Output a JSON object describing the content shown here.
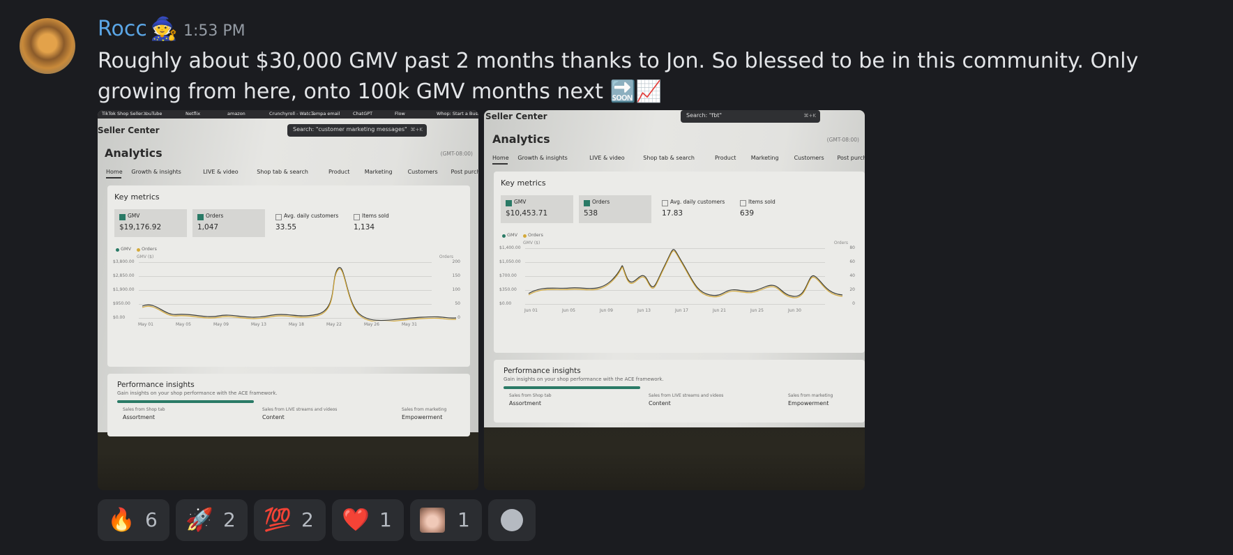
{
  "message": {
    "author": "Rocc",
    "author_badge": "🧙",
    "timestamp": "1:53 PM",
    "text": "Roughly about $30,000 GMV past 2 months thanks to Jon. So blessed to be in this community. Only growing from here, onto 100k GMV months next",
    "text_emoji": "🔜📈"
  },
  "attachments": [
    {
      "bookmarks": [
        "TikTok Shop Seller...",
        "YouTube",
        "Netflix",
        "amazon",
        "Crunchyroll - Watc...",
        "Tempa email",
        "ChatGPT",
        "Flow",
        "Whop: Start a Busi..."
      ],
      "header": "Seller Center",
      "search": "Search: \"customer marketing messages\"",
      "shortcut": "⌘+K",
      "title": "Analytics",
      "timezone": "(GMT-08:00)",
      "tabs": [
        "Home",
        "Growth & insights",
        "LIVE & video",
        "Shop tab & search",
        "Product",
        "Marketing",
        "Customers",
        "Post purchase"
      ],
      "section": "Key metrics",
      "metrics": [
        {
          "label": "GMV",
          "value": "$19,176.92"
        },
        {
          "label": "Orders",
          "value": "1,047"
        },
        {
          "label": "Avg. daily customers",
          "value": "33.55"
        },
        {
          "label": "Items sold",
          "value": "1,134"
        }
      ],
      "legend": [
        "GMV",
        "Orders"
      ],
      "y_axis_label": "GMV ($)",
      "y2_axis_label": "Orders",
      "yticks": [
        "$3,800.00",
        "$2,850.00",
        "$1,900.00",
        "$950.00",
        "$0.00"
      ],
      "y2ticks": [
        "200",
        "150",
        "100",
        "50",
        "0"
      ],
      "xticks": [
        "May 01",
        "May 05",
        "May 09",
        "May 13",
        "May 18",
        "May 22",
        "May 26",
        "May 31"
      ],
      "insights_title": "Performance insights",
      "insights_subtitle": "Gain insights on your shop performance with the ACE framework.",
      "insight_cards": [
        {
          "caption": "Sales from Shop tab",
          "name": "Assortment"
        },
        {
          "caption": "Sales from LIVE streams and videos",
          "name": "Content"
        },
        {
          "caption": "Sales from marketing",
          "name": "Empowerment"
        }
      ]
    },
    {
      "header": "Seller Center",
      "search": "Search: \"fbt\"",
      "shortcut": "⌘+K",
      "title": "Analytics",
      "timezone": "(GMT-08:00)",
      "tabs": [
        "Home",
        "Growth & insights",
        "LIVE & video",
        "Shop tab & search",
        "Product",
        "Marketing",
        "Customers",
        "Post purchase"
      ],
      "section": "Key metrics",
      "metrics": [
        {
          "label": "GMV",
          "value": "$10,453.71"
        },
        {
          "label": "Orders",
          "value": "538"
        },
        {
          "label": "Avg. daily customers",
          "value": "17.83"
        },
        {
          "label": "Items sold",
          "value": "639"
        }
      ],
      "legend": [
        "GMV",
        "Orders"
      ],
      "y_axis_label": "GMV ($)",
      "y2_axis_label": "Orders",
      "yticks": [
        "$1,400.00",
        "$1,050.00",
        "$700.00",
        "$350.00",
        "$0.00"
      ],
      "y2ticks": [
        "80",
        "60",
        "40",
        "20",
        "0"
      ],
      "xticks": [
        "Jun 01",
        "Jun 05",
        "Jun 09",
        "Jun 13",
        "Jun 17",
        "Jun 21",
        "Jun 25",
        "Jun 30"
      ],
      "insights_title": "Performance insights",
      "insights_subtitle": "Gain insights on your shop performance with the ACE framework.",
      "insight_cards": [
        {
          "caption": "Sales from Shop tab",
          "name": "Assortment"
        },
        {
          "caption": "Sales from LIVE streams and videos",
          "name": "Content"
        },
        {
          "caption": "Sales from marketing",
          "name": "Empowerment"
        }
      ]
    }
  ],
  "reactions": [
    {
      "emoji": "🔥",
      "count": 6
    },
    {
      "emoji": "🚀",
      "count": 2
    },
    {
      "emoji": "💯",
      "count": 2
    },
    {
      "emoji": "❤️",
      "count": 1
    },
    {
      "count": 1
    }
  ]
}
